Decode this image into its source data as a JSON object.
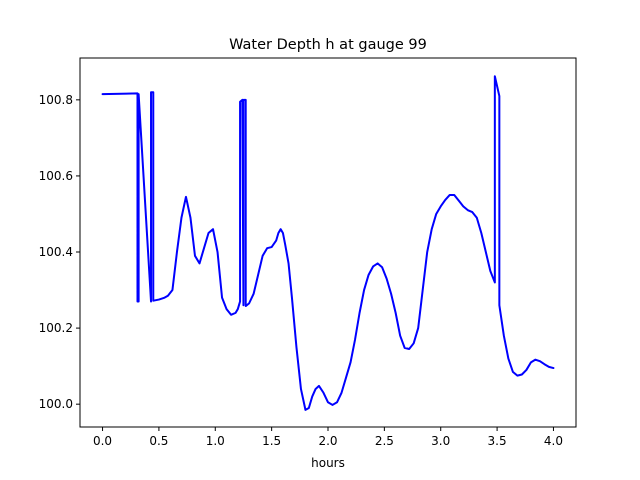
{
  "chart_data": {
    "type": "line",
    "title": "Water Depth h at gauge 99",
    "xlabel": "hours",
    "ylabel": "",
    "xlim": [
      -0.2,
      4.2
    ],
    "ylim": [
      99.94,
      100.91
    ],
    "xticks": [
      0.0,
      0.5,
      1.0,
      1.5,
      2.0,
      2.5,
      3.0,
      3.5,
      4.0
    ],
    "xtick_labels": [
      "0.0",
      "0.5",
      "1.0",
      "1.5",
      "2.0",
      "2.5",
      "3.0",
      "3.5",
      "4.0"
    ],
    "yticks": [
      100.0,
      100.2,
      100.4,
      100.6,
      100.8
    ],
    "ytick_labels": [
      "100.0",
      "100.2",
      "100.4",
      "100.6",
      "100.8"
    ],
    "grid": false,
    "series": [
      {
        "color": "#0000ff",
        "x": [
          0.0,
          0.31,
          0.31,
          0.32,
          0.32,
          0.43,
          0.43,
          0.45,
          0.45,
          0.5,
          0.55,
          0.58,
          0.62,
          0.66,
          0.7,
          0.74,
          0.78,
          0.82,
          0.86,
          0.9,
          0.94,
          0.98,
          1.02,
          1.06,
          1.1,
          1.14,
          1.18,
          1.2,
          1.22,
          1.22,
          1.24,
          1.25,
          1.25,
          1.27,
          1.27,
          1.3,
          1.34,
          1.38,
          1.42,
          1.46,
          1.5,
          1.54,
          1.56,
          1.58,
          1.6,
          1.62,
          1.65,
          1.68,
          1.72,
          1.76,
          1.8,
          1.83,
          1.86,
          1.89,
          1.92,
          1.96,
          2.0,
          2.04,
          2.08,
          2.12,
          2.16,
          2.2,
          2.24,
          2.28,
          2.32,
          2.36,
          2.4,
          2.44,
          2.48,
          2.52,
          2.56,
          2.6,
          2.64,
          2.68,
          2.72,
          2.76,
          2.8,
          2.84,
          2.88,
          2.92,
          2.96,
          3.0,
          3.04,
          3.08,
          3.12,
          3.16,
          3.2,
          3.24,
          3.28,
          3.32,
          3.36,
          3.4,
          3.44,
          3.48,
          3.48,
          3.52,
          3.52,
          3.56,
          3.6,
          3.64,
          3.68,
          3.72,
          3.76,
          3.8,
          3.84,
          3.88,
          3.92,
          3.96,
          4.0
        ],
        "y": [
          100.815,
          100.817,
          100.27,
          100.27,
          100.815,
          100.27,
          100.82,
          100.82,
          100.272,
          100.275,
          100.28,
          100.285,
          100.3,
          100.4,
          100.49,
          100.545,
          100.49,
          100.39,
          100.37,
          100.41,
          100.45,
          100.46,
          100.4,
          100.28,
          100.25,
          100.235,
          100.24,
          100.25,
          100.27,
          100.795,
          100.8,
          100.26,
          100.8,
          100.8,
          100.258,
          100.265,
          100.29,
          100.34,
          100.39,
          100.41,
          100.413,
          100.43,
          100.45,
          100.46,
          100.45,
          100.42,
          100.37,
          100.28,
          100.15,
          100.04,
          99.985,
          99.99,
          100.02,
          100.04,
          100.048,
          100.03,
          100.005,
          99.998,
          100.005,
          100.03,
          100.07,
          100.11,
          100.17,
          100.24,
          100.3,
          100.34,
          100.362,
          100.37,
          100.36,
          100.33,
          100.29,
          100.24,
          100.18,
          100.148,
          100.145,
          100.16,
          100.2,
          100.3,
          100.4,
          100.46,
          100.5,
          100.52,
          100.537,
          100.55,
          100.55,
          100.535,
          100.52,
          100.51,
          100.505,
          100.49,
          100.45,
          100.4,
          100.35,
          100.32,
          100.862,
          100.81,
          100.26,
          100.18,
          100.12,
          100.085,
          100.075,
          100.078,
          100.09,
          100.11,
          100.117,
          100.113,
          100.105,
          100.098,
          100.095
        ]
      }
    ]
  }
}
